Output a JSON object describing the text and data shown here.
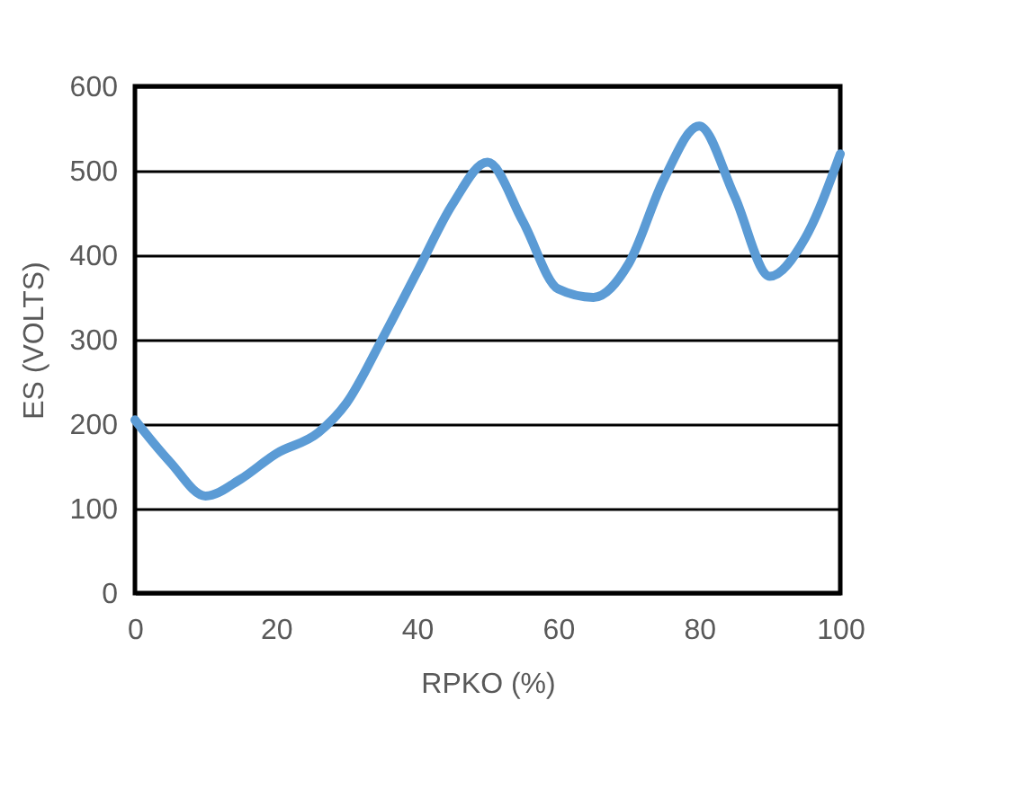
{
  "chart_data": {
    "type": "line",
    "xlabel": "RPKO (%)",
    "ylabel": "ES (VOLTS)",
    "x": [
      0,
      5,
      10,
      15,
      20,
      26,
      30,
      35,
      40,
      45,
      50,
      55,
      60,
      65,
      70,
      75,
      80,
      85,
      90,
      95,
      100
    ],
    "series": [
      {
        "color": "#5b9bd5",
        "values": [
          205,
          155,
          115,
          135,
          165,
          190,
          225,
          300,
          380,
          460,
          510,
          440,
          360,
          350,
          390,
          490,
          553,
          470,
          375,
          420,
          520
        ]
      }
    ],
    "xlim": [
      0,
      100
    ],
    "xticks": [
      0,
      20,
      40,
      60,
      80,
      100
    ],
    "ylim": [
      0,
      600
    ],
    "yticks": [
      0,
      100,
      200,
      300,
      400,
      500,
      600
    ],
    "grid": "y",
    "marker": "none",
    "line_style": "solid"
  }
}
